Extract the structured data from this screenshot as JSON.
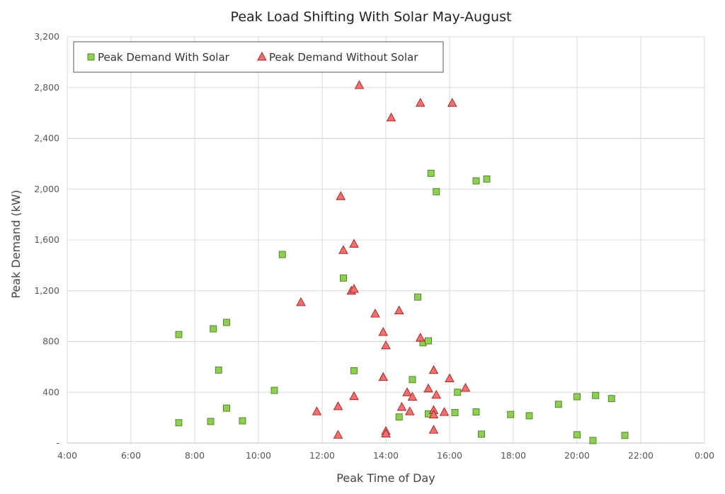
{
  "chart_data": {
    "type": "scatter",
    "title": "Peak Load Shifting With Solar May-August",
    "xlabel": "Peak Time of Day",
    "ylabel": "Peak Demand (kW)",
    "xlim": [
      "4:00",
      "0:00"
    ],
    "ylim": [
      0,
      3200
    ],
    "x_ticks": [
      "4:00",
      "6:00",
      "8:00",
      "10:00",
      "12:00",
      "14:00",
      "16:00",
      "18:00",
      "20:00",
      "22:00",
      "0:00"
    ],
    "y_ticks": [
      "-",
      "400",
      "800",
      "1,200",
      "1,600",
      "2,000",
      "2,400",
      "2,800",
      "3,200"
    ],
    "grid": true,
    "legend_position": "top-left",
    "series": [
      {
        "name": "Peak Demand With Solar",
        "marker": "square",
        "color": "#8dcf4f",
        "edge_color": "#4e7a2a",
        "points": [
          {
            "x": "7:30",
            "y": 855
          },
          {
            "x": "7:30",
            "y": 160
          },
          {
            "x": "8:30",
            "y": 170
          },
          {
            "x": "8:35",
            "y": 900
          },
          {
            "x": "8:45",
            "y": 575
          },
          {
            "x": "9:00",
            "y": 950
          },
          {
            "x": "9:00",
            "y": 275
          },
          {
            "x": "9:30",
            "y": 175
          },
          {
            "x": "10:30",
            "y": 415
          },
          {
            "x": "10:45",
            "y": 1485
          },
          {
            "x": "12:40",
            "y": 1300
          },
          {
            "x": "13:00",
            "y": 570
          },
          {
            "x": "14:25",
            "y": 205
          },
          {
            "x": "14:50",
            "y": 500
          },
          {
            "x": "15:00",
            "y": 1150
          },
          {
            "x": "15:10",
            "y": 790
          },
          {
            "x": "15:20",
            "y": 805
          },
          {
            "x": "15:20",
            "y": 230
          },
          {
            "x": "15:25",
            "y": 2125
          },
          {
            "x": "15:35",
            "y": 1980
          },
          {
            "x": "16:10",
            "y": 240
          },
          {
            "x": "16:15",
            "y": 400
          },
          {
            "x": "16:50",
            "y": 2065
          },
          {
            "x": "16:50",
            "y": 245
          },
          {
            "x": "17:00",
            "y": 70
          },
          {
            "x": "17:10",
            "y": 2080
          },
          {
            "x": "17:55",
            "y": 225
          },
          {
            "x": "18:30",
            "y": 215
          },
          {
            "x": "19:25",
            "y": 305
          },
          {
            "x": "20:00",
            "y": 365
          },
          {
            "x": "20:00",
            "y": 65
          },
          {
            "x": "20:35",
            "y": 375
          },
          {
            "x": "20:30",
            "y": 20
          },
          {
            "x": "21:05",
            "y": 350
          },
          {
            "x": "21:30",
            "y": 60
          }
        ]
      },
      {
        "name": "Peak Demand Without Solar",
        "marker": "triangle",
        "color": "#f07070",
        "edge_color": "#a02020",
        "points": [
          {
            "x": "11:20",
            "y": 1110
          },
          {
            "x": "11:50",
            "y": 250
          },
          {
            "x": "12:30",
            "y": 290
          },
          {
            "x": "12:30",
            "y": 65
          },
          {
            "x": "12:35",
            "y": 1945
          },
          {
            "x": "12:40",
            "y": 1520
          },
          {
            "x": "12:55",
            "y": 1200
          },
          {
            "x": "13:00",
            "y": 1215
          },
          {
            "x": "13:00",
            "y": 1570
          },
          {
            "x": "13:00",
            "y": 370
          },
          {
            "x": "13:10",
            "y": 2820
          },
          {
            "x": "13:40",
            "y": 1020
          },
          {
            "x": "13:55",
            "y": 875
          },
          {
            "x": "13:55",
            "y": 520
          },
          {
            "x": "14:00",
            "y": 770
          },
          {
            "x": "14:00",
            "y": 95
          },
          {
            "x": "14:00",
            "y": 75
          },
          {
            "x": "14:10",
            "y": 2565
          },
          {
            "x": "14:25",
            "y": 1045
          },
          {
            "x": "14:30",
            "y": 285
          },
          {
            "x": "14:40",
            "y": 400
          },
          {
            "x": "14:45",
            "y": 250
          },
          {
            "x": "14:50",
            "y": 365
          },
          {
            "x": "15:05",
            "y": 2680
          },
          {
            "x": "15:05",
            "y": 830
          },
          {
            "x": "15:20",
            "y": 430
          },
          {
            "x": "15:30",
            "y": 575
          },
          {
            "x": "15:30",
            "y": 260
          },
          {
            "x": "15:30",
            "y": 225
          },
          {
            "x": "15:30",
            "y": 105
          },
          {
            "x": "15:35",
            "y": 380
          },
          {
            "x": "15:50",
            "y": 245
          },
          {
            "x": "16:00",
            "y": 510
          },
          {
            "x": "16:05",
            "y": 2680
          },
          {
            "x": "16:30",
            "y": 435
          }
        ]
      }
    ]
  }
}
